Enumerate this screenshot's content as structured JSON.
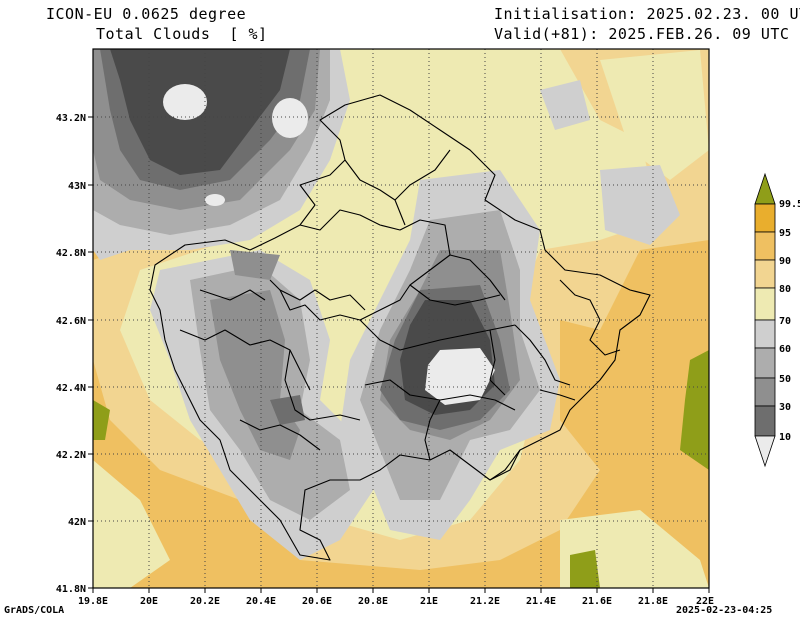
{
  "header": {
    "model": "ICON-EU 0.0625 degree",
    "variable": "Total Clouds  [ %]",
    "init": "Initialisation: 2025.02.23. 00 UTC",
    "valid": "Valid(+81): 2025.FEB.26. 09 UTC"
  },
  "footer": {
    "credit": "GrADS/COLA",
    "timestamp": "2025-02-23-04:25"
  },
  "axes": {
    "lon_labels": [
      "19.8E",
      "20E",
      "20.2E",
      "20.4E",
      "20.6E",
      "20.8E",
      "21E",
      "21.2E",
      "21.4E",
      "21.6E",
      "21.8E",
      "22E"
    ],
    "lat_labels": [
      "43.2N",
      "43N",
      "42.8N",
      "42.6N",
      "42.4N",
      "42.2N",
      "42N",
      "41.8N"
    ]
  },
  "colorbar": {
    "levels": [
      "99.5",
      "95",
      "90",
      "80",
      "70",
      "60",
      "50",
      "30",
      "10"
    ],
    "colors": {
      "c10": "#4a4a4a",
      "c30": "#6e6e6e",
      "c50": "#8f8f8f",
      "c60": "#adadad",
      "c70": "#cfcfcf",
      "c80": "#eeeab2",
      "c90": "#f2d591",
      "c95": "#efc061",
      "c99": "#e9ae2d",
      "c100": "#8f9e19",
      "white": "#ebebeb"
    }
  }
}
